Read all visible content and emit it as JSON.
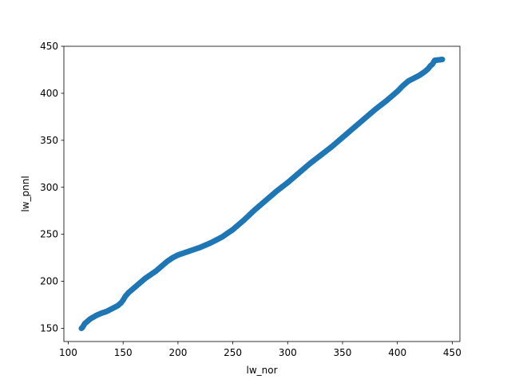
{
  "chart_data": {
    "type": "scatter",
    "title": "",
    "xlabel": "lw_nor",
    "ylabel": "lw_pnnl",
    "xlim": [
      96,
      457
    ],
    "ylim": [
      136,
      450
    ],
    "xticks": [
      100,
      150,
      200,
      250,
      300,
      350,
      400,
      450
    ],
    "yticks": [
      150,
      200,
      250,
      300,
      350,
      400,
      450
    ],
    "grid": false,
    "legend": "none",
    "marker_color": "#1f77b4",
    "series": [
      {
        "x": [
          112,
          113,
          114,
          115,
          116,
          118,
          120,
          123,
          126,
          130,
          135,
          140,
          145,
          148,
          150,
          152,
          155,
          160,
          165,
          170,
          175,
          180,
          185,
          190,
          195,
          200,
          205,
          210,
          220,
          230,
          240,
          250,
          260,
          270,
          280,
          290,
          300,
          310,
          320,
          330,
          340,
          350,
          360,
          370,
          380,
          390,
          400,
          405,
          410,
          415,
          420,
          425,
          428,
          430,
          432,
          434,
          441
        ],
        "y": [
          150,
          151,
          153,
          155,
          156,
          158,
          160,
          162,
          164,
          166,
          168,
          171,
          174,
          177,
          180,
          184,
          188,
          193,
          198,
          203,
          207,
          211,
          216,
          221,
          225,
          228,
          230,
          232,
          236,
          241,
          247,
          255,
          265,
          276,
          286,
          296,
          305,
          315,
          325,
          334,
          343,
          353,
          363,
          373,
          383,
          392,
          402,
          408,
          413,
          416,
          419,
          423,
          426,
          429,
          431,
          435,
          436
        ]
      }
    ]
  }
}
